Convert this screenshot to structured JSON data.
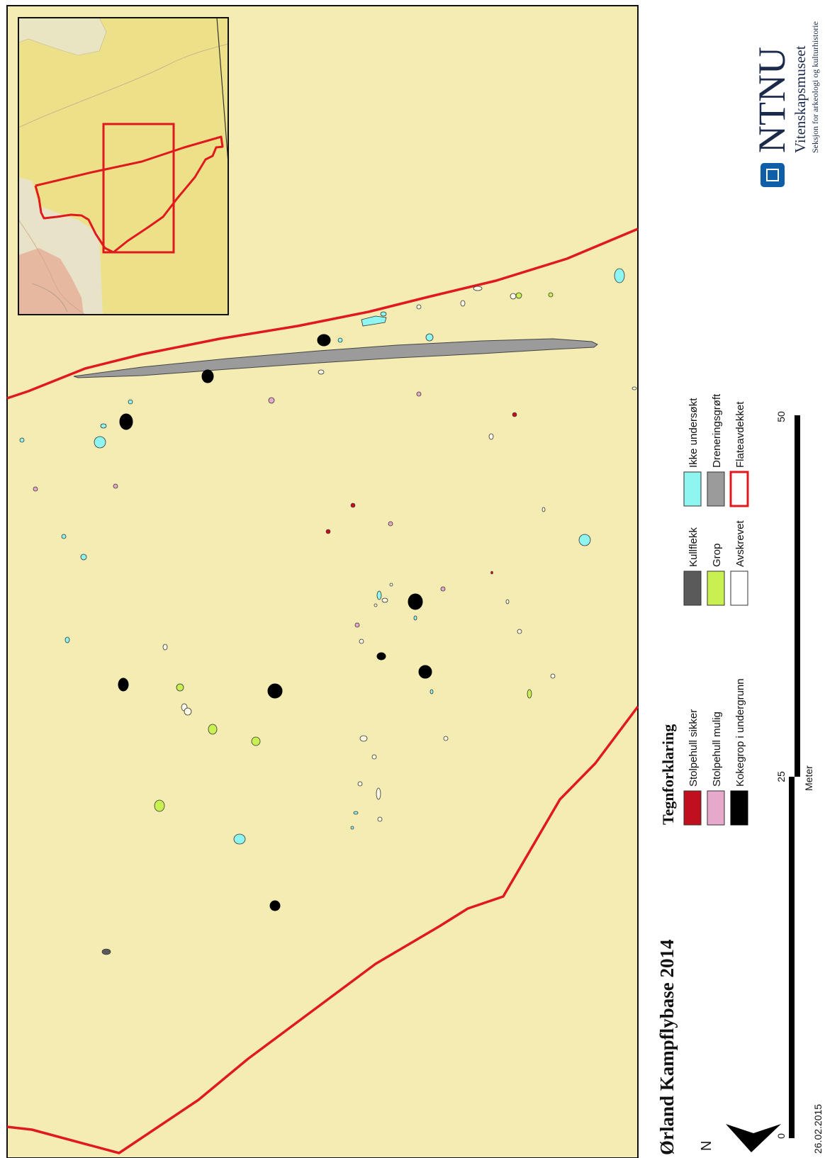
{
  "title": "Ørland Kampflybase 2014",
  "legend": {
    "heading": "Tegnforklaring",
    "items": [
      {
        "label": "Stolpehull sikker",
        "color": "#c0101e",
        "stroke": "#333333"
      },
      {
        "label": "Stolpehull mulig",
        "color": "#e6a9cc",
        "stroke": "#333333"
      },
      {
        "label": "Kokegrop i undergrunn",
        "color": "#000000",
        "stroke": "#000000"
      },
      {
        "label": "Kullflekk",
        "color": "#5a5a5a",
        "stroke": "#333333"
      },
      {
        "label": "Grop",
        "color": "#c8f050",
        "stroke": "#333333"
      },
      {
        "label": "Avskrevet",
        "color": "#ffffff",
        "stroke": "#333333"
      },
      {
        "label": "Ikke undersøkt",
        "color": "#8ef5f0",
        "stroke": "#333333"
      },
      {
        "label": "Dreneringsgrøft",
        "color": "#9b9b9b",
        "stroke": "#333333"
      },
      {
        "label": "Flateavdekket",
        "color": "none",
        "stroke": "#e0191e"
      }
    ]
  },
  "scalebar": {
    "ticks": [
      "0",
      "25",
      "50"
    ],
    "unit": "Meter"
  },
  "north": "N",
  "date": "26.02.2015",
  "logo": {
    "name": "NTNU",
    "museum": "Vitenskapsmuseet",
    "section": "Seksjon for arkeologi og kulturhistorie"
  },
  "colors": {
    "map_background": "#f4ecb3",
    "inset_background": "#ece089",
    "boundary": "#e0191e",
    "ntnu_blue": "#0f5fa8"
  },
  "icons": [
    "north-arrow-icon",
    "ntnu-logo-icon"
  ]
}
